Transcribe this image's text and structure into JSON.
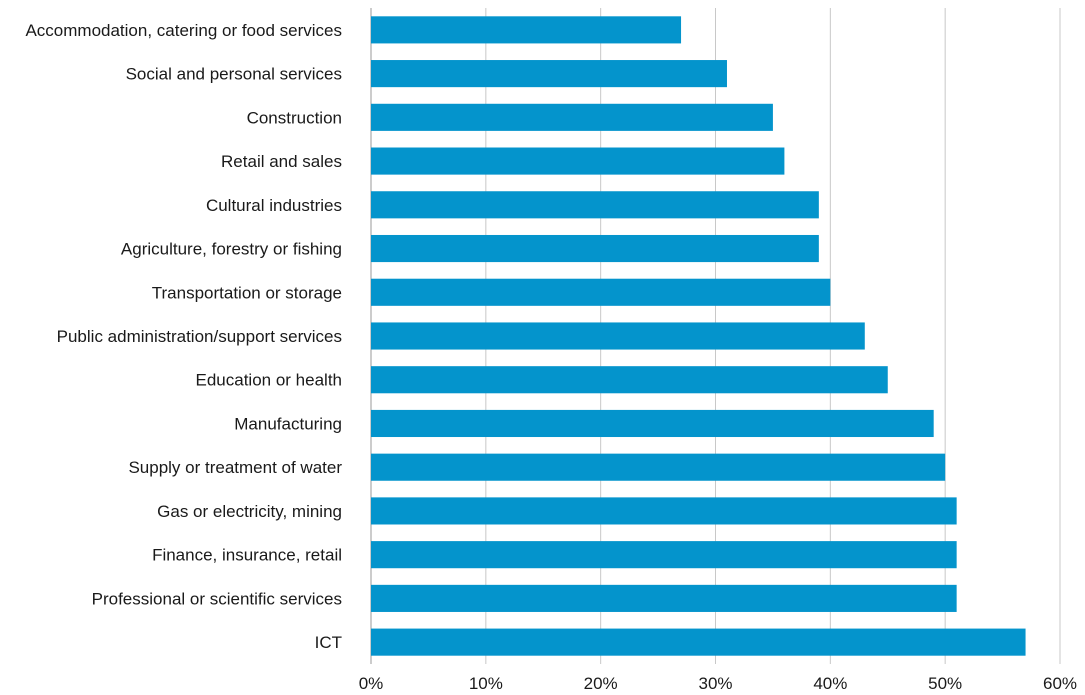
{
  "chart_data": {
    "type": "bar",
    "orientation": "horizontal",
    "categories": [
      "Accommodation, catering or food services",
      "Social and personal services",
      "Construction",
      "Retail and sales",
      "Cultural industries",
      "Agriculture, forestry or fishing",
      "Transportation or storage",
      "Public administration/support services",
      "Education or health",
      "Manufacturing",
      "Supply or treatment of water",
      "Gas or electricity, mining",
      "Finance, insurance, retail",
      "Professional or scientific services",
      "ICT"
    ],
    "values": [
      27,
      31,
      35,
      36,
      39,
      39,
      40,
      43,
      45,
      49,
      50,
      51,
      51,
      51,
      57
    ],
    "xlim": [
      0,
      60
    ],
    "x_ticks": [
      0,
      10,
      20,
      30,
      40,
      50,
      60
    ],
    "x_tick_labels": [
      "0%",
      "10%",
      "20%",
      "30%",
      "40%",
      "50%",
      "60%"
    ],
    "grid": "vertical",
    "bar_color": "#0494cc",
    "title": "",
    "xlabel": "",
    "ylabel": ""
  }
}
